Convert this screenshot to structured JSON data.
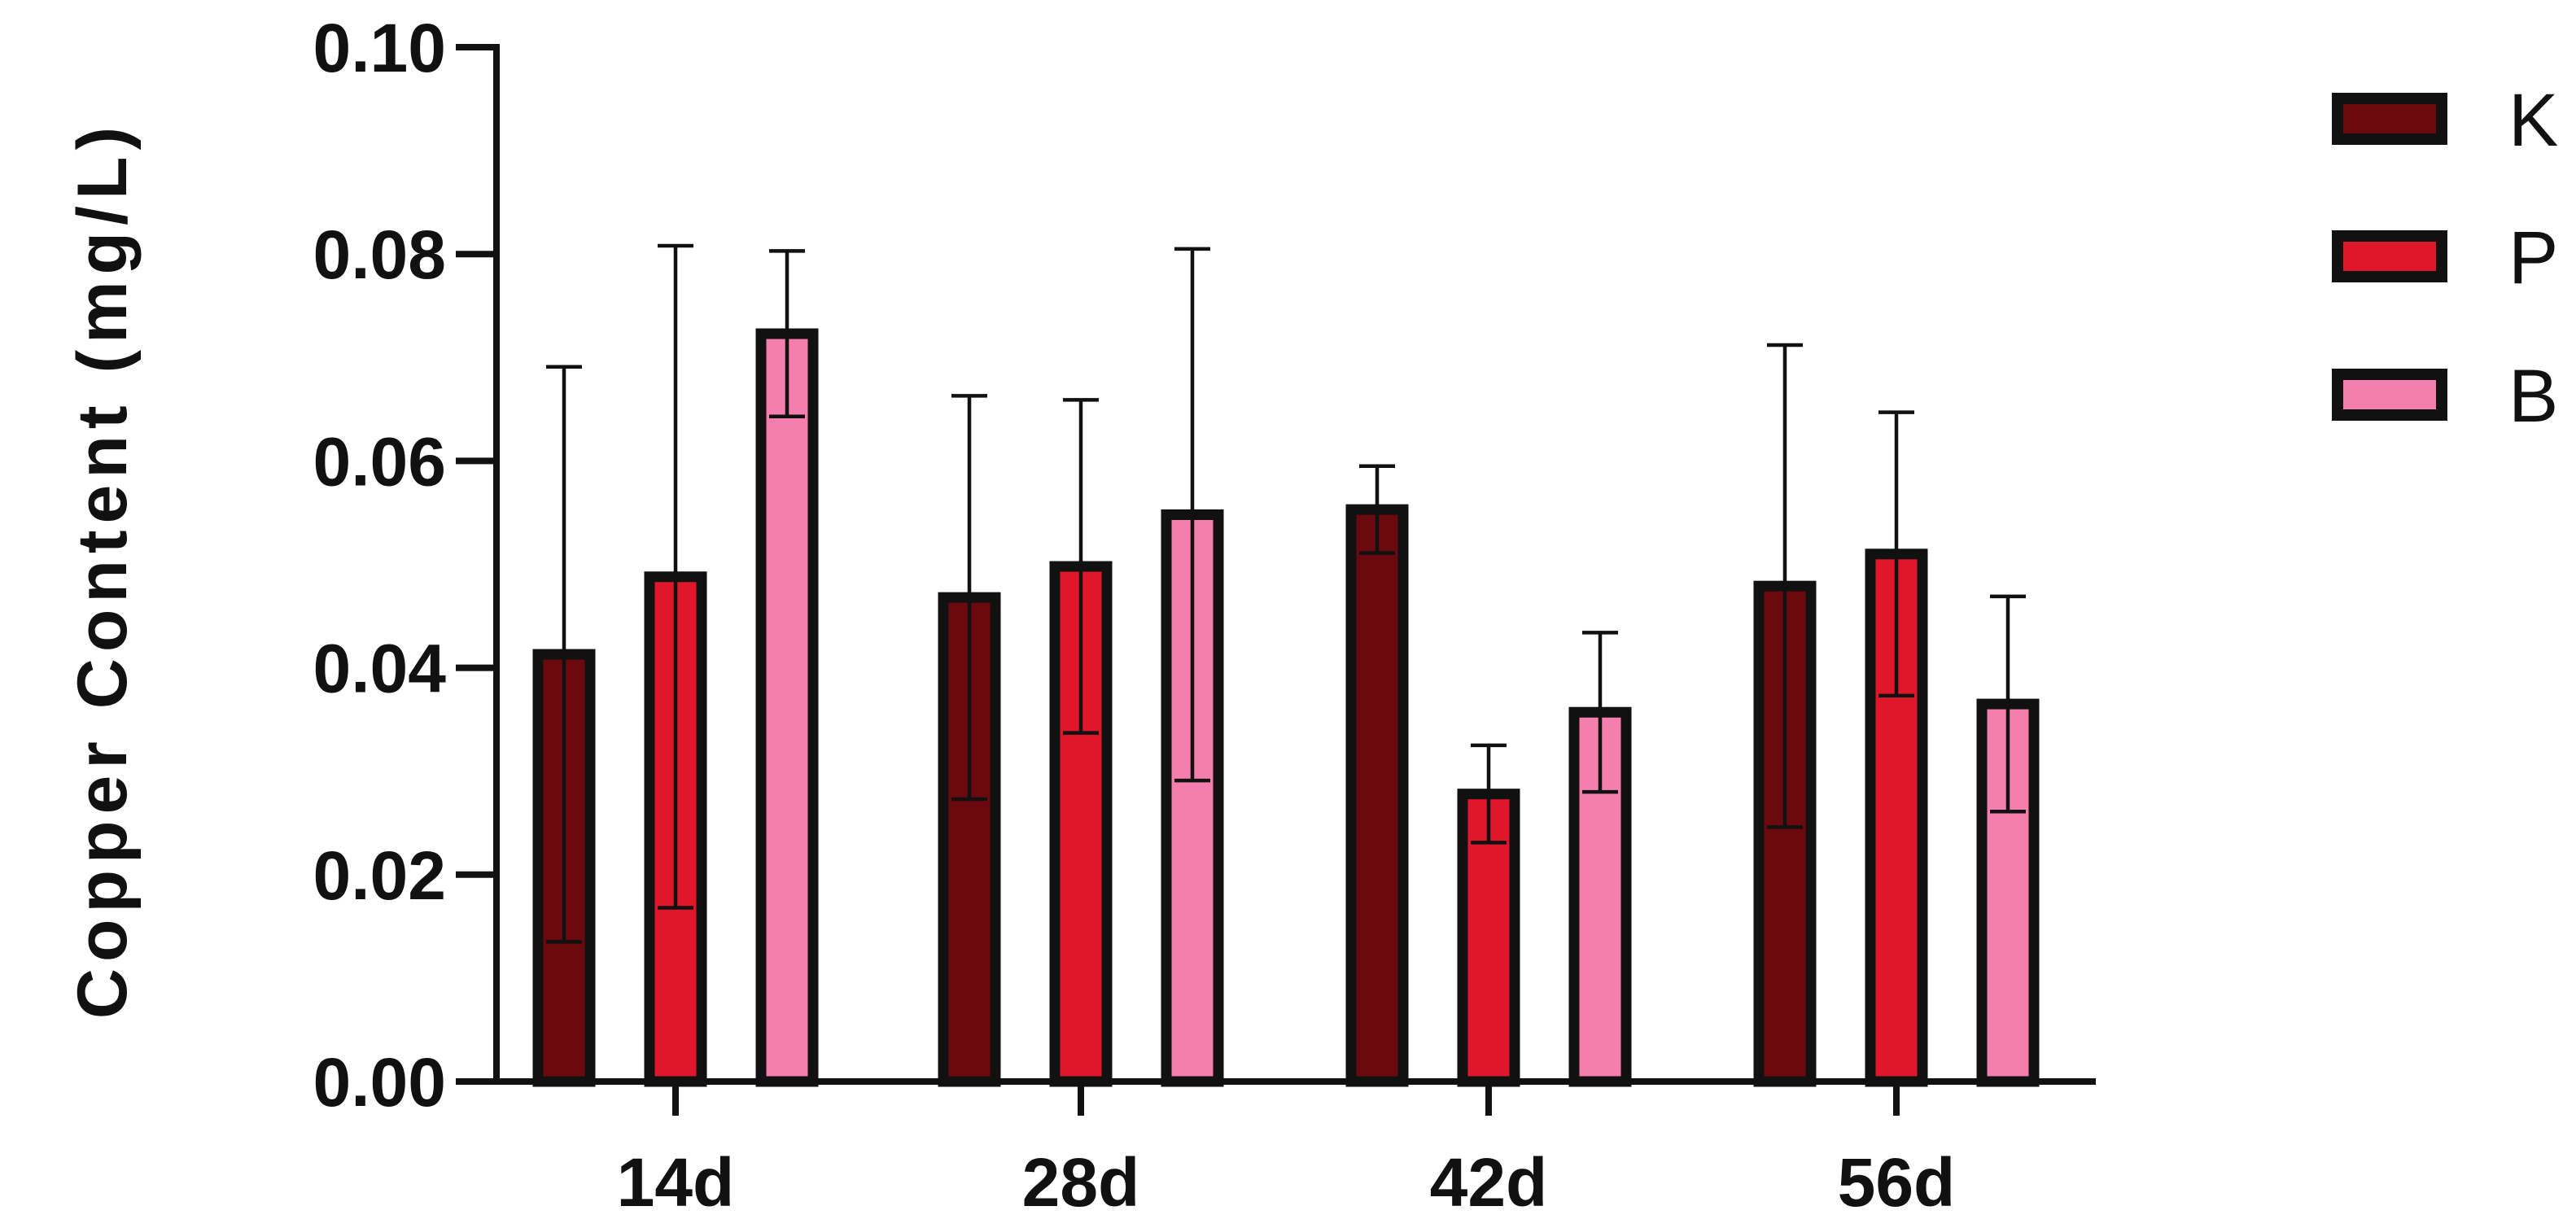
{
  "chart_data": {
    "type": "bar",
    "title": "",
    "xlabel": "",
    "ylabel": "Copper Content  (mg/L)",
    "ylim": [
      0,
      0.1
    ],
    "yticks": [
      "0.00",
      "0.02",
      "0.04",
      "0.06",
      "0.08",
      "0.10"
    ],
    "ytick_values": [
      0,
      0.02,
      0.04,
      0.06,
      0.08,
      0.1
    ],
    "categories": [
      "14d",
      "28d",
      "42d",
      "56d"
    ],
    "series": [
      {
        "name": "K",
        "color": "#6b0a0e",
        "values": [
          0.0413,
          0.0468,
          0.0553,
          0.0479
        ],
        "errors": [
          0.0278,
          0.0195,
          0.0042,
          0.0233
        ]
      },
      {
        "name": "P",
        "color": "#e0172a",
        "values": [
          0.0488,
          0.0498,
          0.0278,
          0.051
        ],
        "errors": [
          0.032,
          0.0161,
          0.0047,
          0.0137
        ]
      },
      {
        "name": "B",
        "color": "#f47fae",
        "values": [
          0.0723,
          0.0548,
          0.0357,
          0.0365
        ],
        "errors": [
          0.008,
          0.0257,
          0.0077,
          0.0104
        ]
      }
    ],
    "legend_position": "top-right",
    "grid": false
  }
}
